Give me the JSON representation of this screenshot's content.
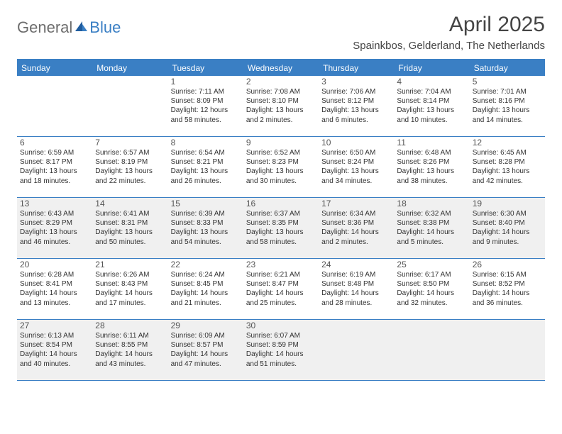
{
  "logo": {
    "text1": "General",
    "text2": "Blue"
  },
  "title": "April 2025",
  "location": "Spainkbos, Gelderland, The Netherlands",
  "colors": {
    "accent": "#3a7fc4",
    "shaded_bg": "#f0f0f0",
    "text": "#333333",
    "title_text": "#454545",
    "logo_gray": "#6d6d6d"
  },
  "daysOfWeek": [
    "Sunday",
    "Monday",
    "Tuesday",
    "Wednesday",
    "Thursday",
    "Friday",
    "Saturday"
  ],
  "firstDayColumn": 2,
  "shadedWeeks": [
    2,
    4
  ],
  "days": [
    {
      "n": 1,
      "sunrise": "7:11 AM",
      "sunset": "8:09 PM",
      "daylight": "12 hours and 58 minutes."
    },
    {
      "n": 2,
      "sunrise": "7:08 AM",
      "sunset": "8:10 PM",
      "daylight": "13 hours and 2 minutes."
    },
    {
      "n": 3,
      "sunrise": "7:06 AM",
      "sunset": "8:12 PM",
      "daylight": "13 hours and 6 minutes."
    },
    {
      "n": 4,
      "sunrise": "7:04 AM",
      "sunset": "8:14 PM",
      "daylight": "13 hours and 10 minutes."
    },
    {
      "n": 5,
      "sunrise": "7:01 AM",
      "sunset": "8:16 PM",
      "daylight": "13 hours and 14 minutes."
    },
    {
      "n": 6,
      "sunrise": "6:59 AM",
      "sunset": "8:17 PM",
      "daylight": "13 hours and 18 minutes."
    },
    {
      "n": 7,
      "sunrise": "6:57 AM",
      "sunset": "8:19 PM",
      "daylight": "13 hours and 22 minutes."
    },
    {
      "n": 8,
      "sunrise": "6:54 AM",
      "sunset": "8:21 PM",
      "daylight": "13 hours and 26 minutes."
    },
    {
      "n": 9,
      "sunrise": "6:52 AM",
      "sunset": "8:23 PM",
      "daylight": "13 hours and 30 minutes."
    },
    {
      "n": 10,
      "sunrise": "6:50 AM",
      "sunset": "8:24 PM",
      "daylight": "13 hours and 34 minutes."
    },
    {
      "n": 11,
      "sunrise": "6:48 AM",
      "sunset": "8:26 PM",
      "daylight": "13 hours and 38 minutes."
    },
    {
      "n": 12,
      "sunrise": "6:45 AM",
      "sunset": "8:28 PM",
      "daylight": "13 hours and 42 minutes."
    },
    {
      "n": 13,
      "sunrise": "6:43 AM",
      "sunset": "8:29 PM",
      "daylight": "13 hours and 46 minutes."
    },
    {
      "n": 14,
      "sunrise": "6:41 AM",
      "sunset": "8:31 PM",
      "daylight": "13 hours and 50 minutes."
    },
    {
      "n": 15,
      "sunrise": "6:39 AM",
      "sunset": "8:33 PM",
      "daylight": "13 hours and 54 minutes."
    },
    {
      "n": 16,
      "sunrise": "6:37 AM",
      "sunset": "8:35 PM",
      "daylight": "13 hours and 58 minutes."
    },
    {
      "n": 17,
      "sunrise": "6:34 AM",
      "sunset": "8:36 PM",
      "daylight": "14 hours and 2 minutes."
    },
    {
      "n": 18,
      "sunrise": "6:32 AM",
      "sunset": "8:38 PM",
      "daylight": "14 hours and 5 minutes."
    },
    {
      "n": 19,
      "sunrise": "6:30 AM",
      "sunset": "8:40 PM",
      "daylight": "14 hours and 9 minutes."
    },
    {
      "n": 20,
      "sunrise": "6:28 AM",
      "sunset": "8:41 PM",
      "daylight": "14 hours and 13 minutes."
    },
    {
      "n": 21,
      "sunrise": "6:26 AM",
      "sunset": "8:43 PM",
      "daylight": "14 hours and 17 minutes."
    },
    {
      "n": 22,
      "sunrise": "6:24 AM",
      "sunset": "8:45 PM",
      "daylight": "14 hours and 21 minutes."
    },
    {
      "n": 23,
      "sunrise": "6:21 AM",
      "sunset": "8:47 PM",
      "daylight": "14 hours and 25 minutes."
    },
    {
      "n": 24,
      "sunrise": "6:19 AM",
      "sunset": "8:48 PM",
      "daylight": "14 hours and 28 minutes."
    },
    {
      "n": 25,
      "sunrise": "6:17 AM",
      "sunset": "8:50 PM",
      "daylight": "14 hours and 32 minutes."
    },
    {
      "n": 26,
      "sunrise": "6:15 AM",
      "sunset": "8:52 PM",
      "daylight": "14 hours and 36 minutes."
    },
    {
      "n": 27,
      "sunrise": "6:13 AM",
      "sunset": "8:54 PM",
      "daylight": "14 hours and 40 minutes."
    },
    {
      "n": 28,
      "sunrise": "6:11 AM",
      "sunset": "8:55 PM",
      "daylight": "14 hours and 43 minutes."
    },
    {
      "n": 29,
      "sunrise": "6:09 AM",
      "sunset": "8:57 PM",
      "daylight": "14 hours and 47 minutes."
    },
    {
      "n": 30,
      "sunrise": "6:07 AM",
      "sunset": "8:59 PM",
      "daylight": "14 hours and 51 minutes."
    }
  ]
}
